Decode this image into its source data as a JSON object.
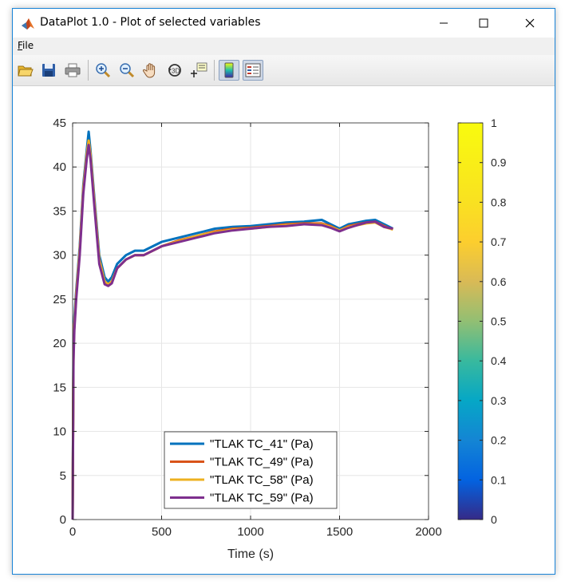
{
  "window": {
    "title": "DataPlot 1.0 - Plot of selected variables",
    "menu": [
      {
        "label": "File"
      }
    ],
    "toolbar": [
      "open-icon",
      "save-icon",
      "print-icon",
      "zoom-in-icon",
      "zoom-out-icon",
      "pan-icon",
      "rotate-icon",
      "data-cursor-icon",
      "colorbar-icon",
      "legend-icon"
    ]
  },
  "colors": {
    "series": [
      "#0072BD",
      "#D95319",
      "#EDB120",
      "#7E2F8E"
    ],
    "titlebar_accent": "#1883d7"
  },
  "chart_data": {
    "type": "line",
    "title": "",
    "xlabel": "Time (s)",
    "ylabel": "",
    "xlim": [
      0,
      2000
    ],
    "ylim": [
      0,
      45
    ],
    "xticks": [
      0,
      500,
      1000,
      1500,
      2000
    ],
    "yticks": [
      0,
      5,
      10,
      15,
      20,
      25,
      30,
      35,
      40,
      45
    ],
    "grid": true,
    "legend_position": "bottom-center",
    "x": [
      0,
      5,
      10,
      20,
      40,
      60,
      80,
      90,
      100,
      120,
      150,
      180,
      200,
      220,
      250,
      300,
      350,
      400,
      500,
      600,
      700,
      800,
      900,
      1000,
      1100,
      1200,
      1300,
      1400,
      1450,
      1500,
      1550,
      1600,
      1650,
      1700,
      1750,
      1800
    ],
    "series": [
      {
        "name": "\"TLAK TC_41\" (Pa)",
        "values": [
          0,
          20,
          23,
          26,
          31,
          38,
          42,
          44,
          42,
          37,
          30,
          27.5,
          27,
          27.5,
          29,
          30,
          30.5,
          30.5,
          31.5,
          32,
          32.5,
          33,
          33.2,
          33.3,
          33.5,
          33.7,
          33.8,
          34,
          33.5,
          33,
          33.5,
          33.7,
          33.9,
          34,
          33.5,
          33
        ]
      },
      {
        "name": "\"TLAK TC_49\" (Pa)",
        "values": [
          0,
          19,
          22,
          25.5,
          30.5,
          37.5,
          41.5,
          43,
          41.5,
          36.5,
          29.5,
          27,
          26.7,
          27,
          28.5,
          29.5,
          30,
          30,
          31,
          31.7,
          32.2,
          32.7,
          33,
          33.1,
          33.3,
          33.5,
          33.6,
          33.6,
          33.3,
          32.8,
          33.3,
          33.5,
          33.7,
          33.8,
          33.3,
          32.9
        ]
      },
      {
        "name": "\"TLAK TC_58\" (Pa)",
        "values": [
          0,
          19,
          22,
          25.5,
          30.5,
          37.5,
          41.5,
          43,
          41.5,
          36.5,
          29.5,
          27,
          26.7,
          27,
          28.5,
          29.5,
          30,
          30,
          31,
          31.6,
          32.2,
          32.6,
          32.9,
          33,
          33.2,
          33.4,
          33.5,
          33.5,
          33.2,
          32.8,
          33.2,
          33.4,
          33.6,
          33.7,
          33.2,
          32.9
        ]
      },
      {
        "name": "\"TLAK TC_59\" (Pa)",
        "values": [
          0,
          18,
          21.5,
          25,
          30,
          37,
          41,
          42.5,
          41,
          36,
          29,
          26.7,
          26.5,
          26.8,
          28.5,
          29.5,
          30,
          30,
          31,
          31.5,
          32,
          32.5,
          32.8,
          33,
          33.2,
          33.3,
          33.5,
          33.4,
          33.1,
          32.7,
          33.1,
          33.4,
          33.7,
          33.8,
          33.2,
          33
        ]
      }
    ],
    "colorbar": {
      "range": [
        0,
        1
      ],
      "ticks": [
        "0",
        "0.1",
        "0.2",
        "0.3",
        "0.4",
        "0.5",
        "0.6",
        "0.7",
        "0.8",
        "0.9",
        "1"
      ],
      "colormap": "parula"
    }
  }
}
